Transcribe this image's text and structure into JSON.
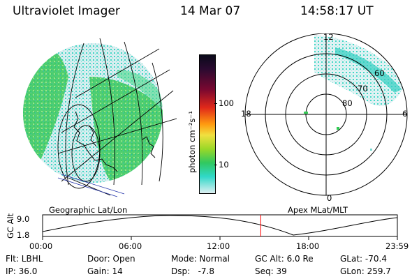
{
  "header": {
    "title": "Ultraviolet Imager",
    "date": "14 Mar 07",
    "time": "14:58:17 UT"
  },
  "colorbar": {
    "label": "photon cm⁻²s⁻¹",
    "ticks": [
      "100",
      "10"
    ]
  },
  "polar": {
    "mlt_labels": {
      "top": "12",
      "left": "18",
      "right": "6",
      "bottom": "0"
    },
    "lat_labels": [
      "60",
      "70",
      "80"
    ]
  },
  "captions": {
    "left": "Geographic Lat/Lon",
    "right": "Apex MLat/MLT"
  },
  "altitude_plot": {
    "ylabel": "GC Alt",
    "yticks": [
      "9.0",
      "1.8"
    ],
    "xticks": [
      "00:00",
      "06:00",
      "12:00",
      "18:00",
      "23:59"
    ],
    "current_time_fraction": 0.615
  },
  "info": {
    "flt": "Flt: LBHL",
    "ip": "IP: 36.0",
    "door": "Door: Open",
    "gain": "Gain: 14",
    "mode": "Mode: Normal",
    "dsp": "Dsp:   -7.8",
    "gcalt": "GC Alt: 6.0 Re",
    "seq": "Seq: 39",
    "glat": "GLat: -70.4",
    "glon": "GLon: 259.7"
  },
  "colors": {
    "green": "#33cc55",
    "cyan": "#22d4c8",
    "red_marker": "#ff0000"
  }
}
